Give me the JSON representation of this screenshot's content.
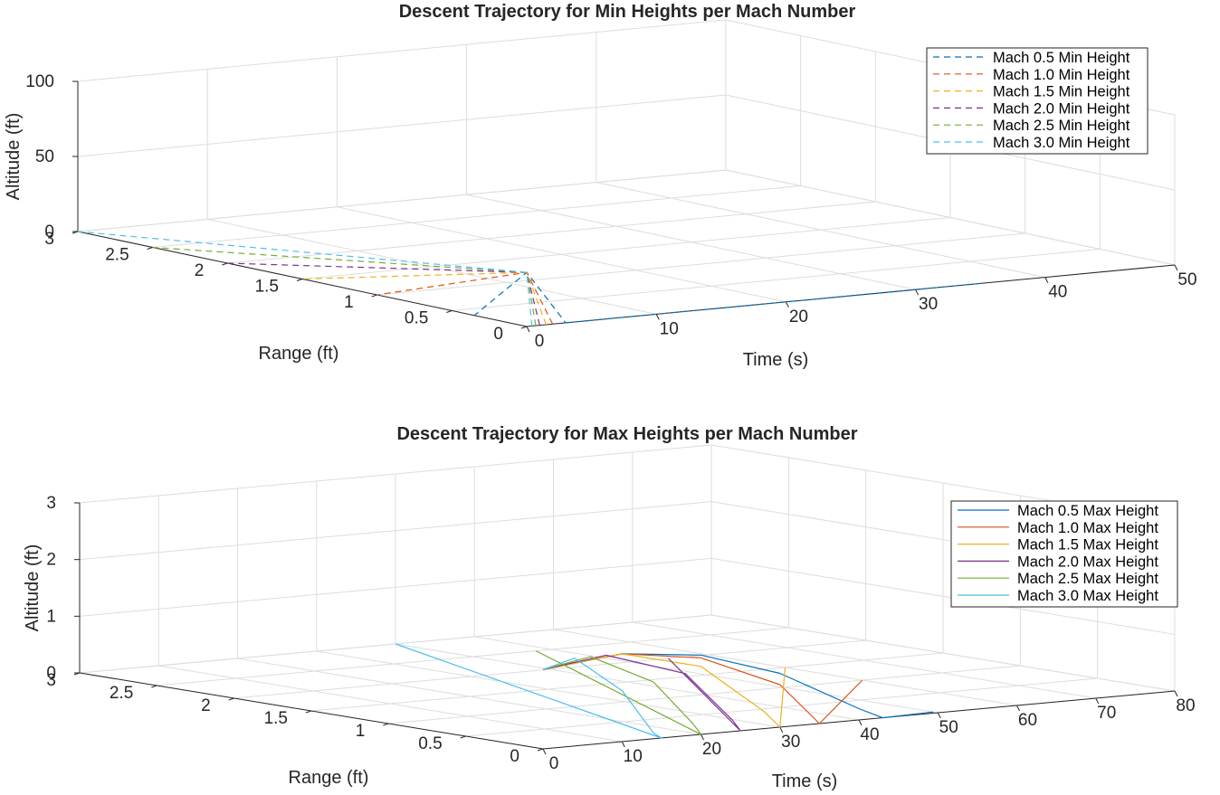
{
  "chart_data": [
    {
      "type": "line3d",
      "title": "Descent Trajectory for Min Heights per Mach Number",
      "xlabel": "Time (s)",
      "ylabel": "Range (ft)",
      "zlabel": "Altitude (ft)",
      "xlim": [
        0,
        50
      ],
      "ylim": [
        0,
        3
      ],
      "zlim": [
        0,
        100
      ],
      "x_ticks": [
        "0",
        "10",
        "20",
        "30",
        "40",
        "50"
      ],
      "y_ticks": [
        "0",
        "0.5",
        "1",
        "1.5",
        "2",
        "2.5",
        "3"
      ],
      "z_ticks": [
        "0",
        "50",
        "100"
      ],
      "grid": true,
      "legend_location": "top-right",
      "line_style": "dashed",
      "series": [
        {
          "name": "Mach 0.5 Min Height",
          "color": "#0072BD",
          "points": [
            [
              35,
              0,
              0
            ],
            [
              3,
              0,
              0
            ],
            [
              0,
              0,
              36
            ],
            [
              0,
              0.35,
              0
            ]
          ]
        },
        {
          "name": "Mach 1.0 Min Height",
          "color": "#D95319",
          "points": [
            [
              2,
              0,
              0
            ],
            [
              0,
              0,
              36
            ],
            [
              0,
              1.0,
              0
            ]
          ]
        },
        {
          "name": "Mach 1.5 Min Height",
          "color": "#EDB120",
          "points": [
            [
              1.5,
              0,
              0
            ],
            [
              0,
              0,
              36
            ],
            [
              0,
              1.5,
              0
            ]
          ]
        },
        {
          "name": "Mach 2.0 Min Height",
          "color": "#7E2F8E",
          "points": [
            [
              1,
              0,
              0
            ],
            [
              0,
              0,
              36
            ],
            [
              0,
              2.0,
              0
            ]
          ]
        },
        {
          "name": "Mach 2.5 Min Height",
          "color": "#77AC30",
          "points": [
            [
              0.7,
              0,
              0
            ],
            [
              0,
              0,
              36
            ],
            [
              0,
              2.5,
              0
            ]
          ]
        },
        {
          "name": "Mach 3.0 Min Height",
          "color": "#4DBEEE",
          "points": [
            [
              0.4,
              0,
              0
            ],
            [
              0,
              0,
              36
            ],
            [
              0,
              3.0,
              0
            ]
          ]
        }
      ]
    },
    {
      "type": "line3d",
      "title": "Descent Trajectory for Max Heights per Mach Number",
      "xlabel": "Time (s)",
      "ylabel": "Range (ft)",
      "zlabel": "Altitude (ft)",
      "xlim": [
        0,
        80
      ],
      "ylim": [
        0,
        3
      ],
      "zlim": [
        0,
        3
      ],
      "x_ticks": [
        "0",
        "10",
        "20",
        "30",
        "40",
        "50",
        "60",
        "70",
        "80"
      ],
      "y_ticks": [
        "0",
        "0.5",
        "1",
        "1.5",
        "2",
        "2.5",
        "3"
      ],
      "z_ticks": [
        "0",
        "1",
        "2",
        "3"
      ],
      "grid": true,
      "legend_location": "top-right",
      "line_style": "solid",
      "series": [
        {
          "name": "Mach 0.5 Max Height",
          "color": "#0072BD",
          "points": [
            [
              0,
              0,
              1.4
            ],
            [
              10,
              0,
              1.55
            ],
            [
              20,
              0,
              1.4
            ],
            [
              30,
              0,
              0.95
            ],
            [
              40,
              0,
              0.2
            ],
            [
              43,
              0,
              0
            ],
            [
              50,
              0.03,
              0
            ]
          ]
        },
        {
          "name": "Mach 1.0 Max Height",
          "color": "#D95319",
          "points": [
            [
              0,
              0,
              1.4
            ],
            [
              10,
              0,
              1.55
            ],
            [
              20,
              0,
              1.35
            ],
            [
              30,
              0,
              0.75
            ],
            [
              35,
              0,
              0
            ],
            [
              60,
              1.0,
              0
            ]
          ]
        },
        {
          "name": "Mach 1.5 Max Height",
          "color": "#EDB120",
          "points": [
            [
              0,
              0,
              1.4
            ],
            [
              10,
              0,
              1.55
            ],
            [
              20,
              0,
              1.2
            ],
            [
              28,
              0,
              0.3
            ],
            [
              30,
              0,
              0
            ],
            [
              60,
              1.5,
              0
            ]
          ]
        },
        {
          "name": "Mach 2.0 Max Height",
          "color": "#7E2F8E",
          "points": [
            [
              0,
              0,
              1.4
            ],
            [
              8,
              0,
              1.55
            ],
            [
              18,
              0,
              1.1
            ],
            [
              24,
              0,
              0.2
            ],
            [
              25,
              0,
              0
            ],
            [
              55,
              2.0,
              0
            ]
          ]
        },
        {
          "name": "Mach 2.5 Max Height",
          "color": "#77AC30",
          "points": [
            [
              0,
              0,
              1.4
            ],
            [
              6,
              0,
              1.55
            ],
            [
              14,
              0,
              1.0
            ],
            [
              19,
              0,
              0.2
            ],
            [
              20,
              0,
              0
            ],
            [
              48,
              2.5,
              0
            ]
          ]
        },
        {
          "name": "Mach 3.0 Max Height",
          "color": "#4DBEEE",
          "points": [
            [
              0,
              0,
              1.4
            ],
            [
              4,
              0,
              1.55
            ],
            [
              10,
              0,
              0.9
            ],
            [
              14,
              0,
              0.1
            ],
            [
              15,
              0,
              0
            ],
            [
              40,
              3.0,
              0
            ]
          ]
        }
      ]
    }
  ]
}
